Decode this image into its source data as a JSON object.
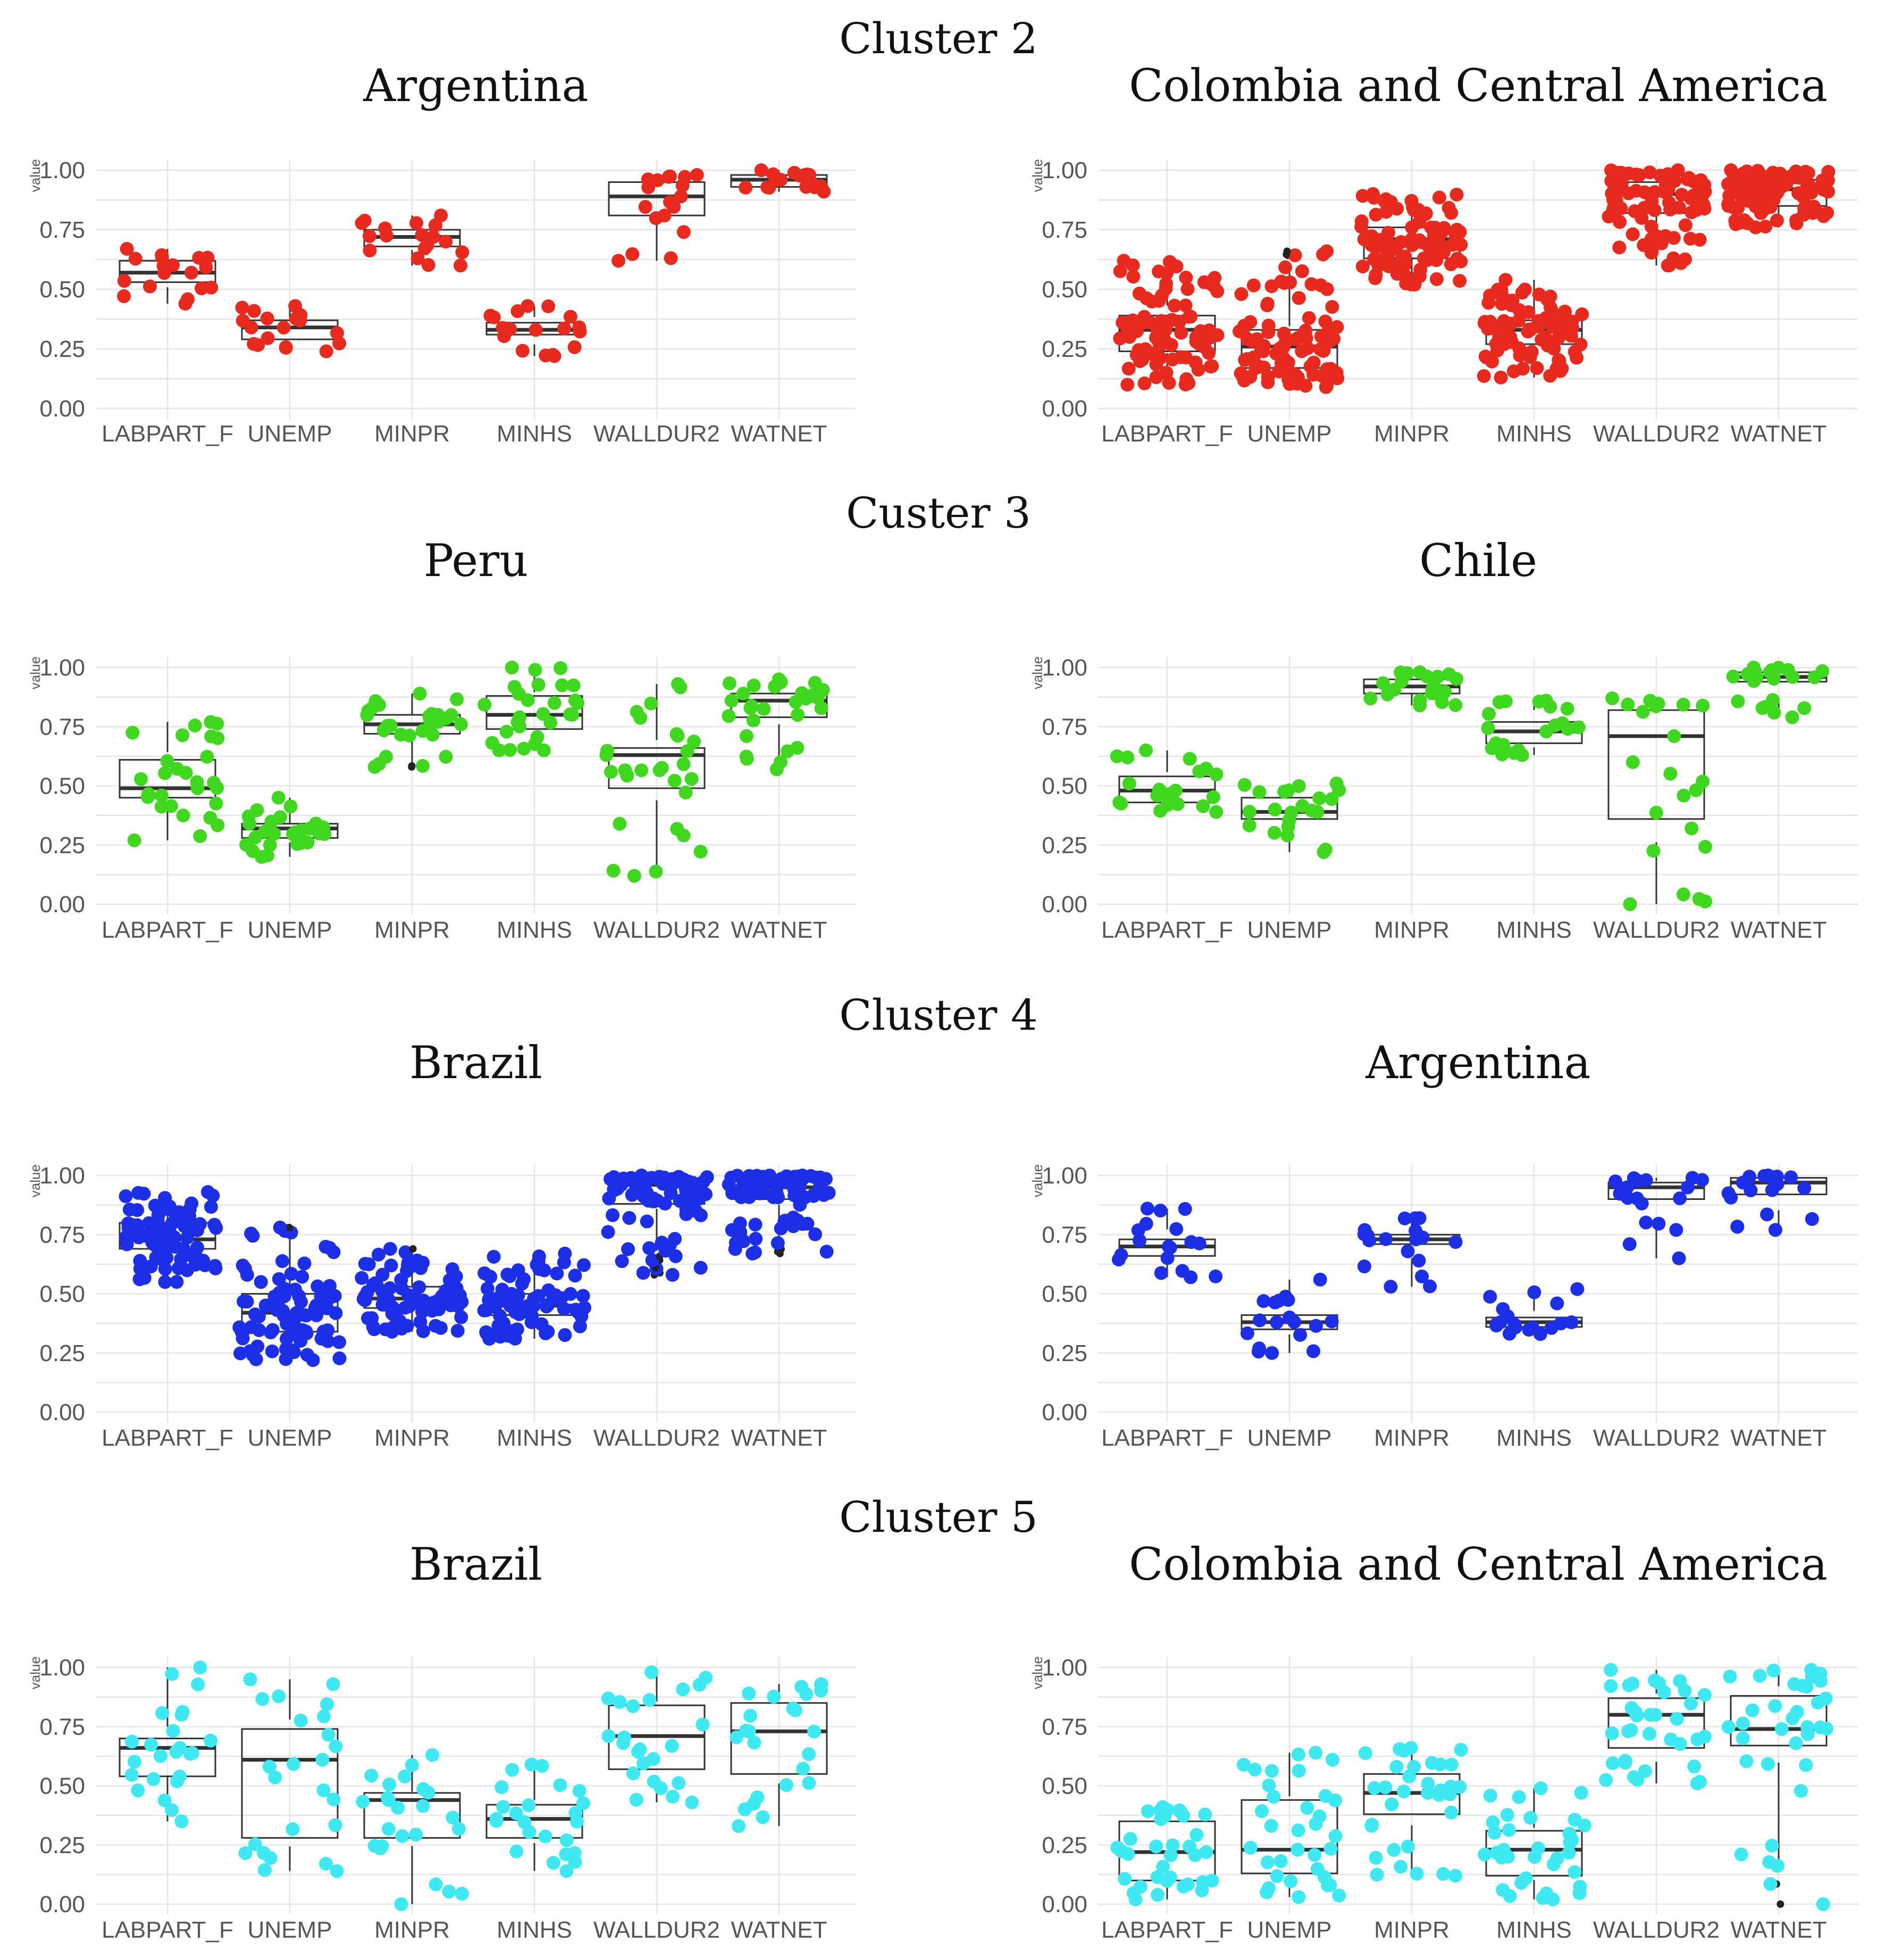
{
  "clusters": [
    {
      "title": "Cluster 2"
    },
    {
      "title": "Custer 3"
    },
    {
      "title": "Cluster 4"
    },
    {
      "title": "Cluster 5"
    }
  ],
  "chart_data": [
    {
      "type": "boxplot",
      "cluster": "Cluster 2",
      "title": "Argentina",
      "color": "#e82a1e",
      "ylabel": "value",
      "ylim": [
        0,
        1
      ],
      "yticks": [
        "0.00",
        "0.25",
        "0.50",
        "0.75",
        "1.00"
      ],
      "categories": [
        "LABPART_F",
        "UNEMP",
        "MINPR",
        "MINHS",
        "WALLDUR2",
        "WATNET"
      ],
      "series": [
        {
          "name": "LABPART_F",
          "min": 0.44,
          "q1": 0.53,
          "median": 0.57,
          "q3": 0.62,
          "max": 0.67,
          "n": 18
        },
        {
          "name": "UNEMP",
          "min": 0.24,
          "q1": 0.29,
          "median": 0.34,
          "q3": 0.37,
          "max": 0.43,
          "n": 18
        },
        {
          "name": "MINPR",
          "min": 0.6,
          "q1": 0.68,
          "median": 0.72,
          "q3": 0.75,
          "max": 0.81,
          "n": 18
        },
        {
          "name": "MINHS",
          "min": 0.22,
          "q1": 0.31,
          "median": 0.33,
          "q3": 0.36,
          "max": 0.43,
          "n": 18
        },
        {
          "name": "WALLDUR2",
          "min": 0.62,
          "q1": 0.81,
          "median": 0.89,
          "q3": 0.95,
          "max": 0.98,
          "n": 18
        },
        {
          "name": "WATNET",
          "min": 0.91,
          "q1": 0.93,
          "median": 0.96,
          "q3": 0.98,
          "max": 1.0,
          "n": 18
        }
      ]
    },
    {
      "type": "boxplot",
      "cluster": "Cluster 2",
      "title": "Colombia and Central America",
      "color": "#e82a1e",
      "ylabel": "value",
      "ylim": [
        0,
        1
      ],
      "yticks": [
        "0.00",
        "0.25",
        "0.50",
        "0.75",
        "1.00"
      ],
      "categories": [
        "LABPART_F",
        "UNEMP",
        "MINPR",
        "MINHS",
        "WALLDUR2",
        "WATNET"
      ],
      "series": [
        {
          "name": "LABPART_F",
          "min": 0.1,
          "q1": 0.24,
          "median": 0.33,
          "q3": 0.39,
          "max": 0.62,
          "n": 90
        },
        {
          "name": "UNEMP",
          "min": 0.09,
          "q1": 0.17,
          "median": 0.26,
          "q3": 0.33,
          "max": 0.66,
          "n": 90
        },
        {
          "name": "MINPR",
          "min": 0.52,
          "q1": 0.63,
          "median": 0.71,
          "q3": 0.76,
          "max": 0.9,
          "n": 90
        },
        {
          "name": "MINHS",
          "min": 0.13,
          "q1": 0.27,
          "median": 0.33,
          "q3": 0.37,
          "max": 0.54,
          "n": 90
        },
        {
          "name": "WALLDUR2",
          "min": 0.6,
          "q1": 0.82,
          "median": 0.9,
          "q3": 0.95,
          "max": 1.0,
          "n": 90
        },
        {
          "name": "WATNET",
          "min": 0.76,
          "q1": 0.85,
          "median": 0.92,
          "q3": 0.96,
          "max": 1.0,
          "n": 90
        }
      ]
    },
    {
      "type": "boxplot",
      "cluster": "Custer 3",
      "title": "Peru",
      "color": "#3fd81e",
      "ylabel": "value",
      "ylim": [
        0,
        1
      ],
      "yticks": [
        "0.00",
        "0.25",
        "0.50",
        "0.75",
        "1.00"
      ],
      "categories": [
        "LABPART_F",
        "UNEMP",
        "MINPR",
        "MINHS",
        "WALLDUR2",
        "WATNET"
      ],
      "series": [
        {
          "name": "LABPART_F",
          "min": 0.27,
          "q1": 0.45,
          "median": 0.49,
          "q3": 0.61,
          "max": 0.77,
          "n": 28
        },
        {
          "name": "UNEMP",
          "min": 0.2,
          "q1": 0.28,
          "median": 0.32,
          "q3": 0.34,
          "max": 0.45,
          "n": 28
        },
        {
          "name": "MINPR",
          "min": 0.58,
          "q1": 0.72,
          "median": 0.76,
          "q3": 0.8,
          "max": 0.89,
          "n": 28
        },
        {
          "name": "MINHS",
          "min": 0.65,
          "q1": 0.74,
          "median": 0.8,
          "q3": 0.88,
          "max": 1.0,
          "n": 28
        },
        {
          "name": "WALLDUR2",
          "min": 0.12,
          "q1": 0.49,
          "median": 0.63,
          "q3": 0.66,
          "max": 0.93,
          "n": 28
        },
        {
          "name": "WATNET",
          "min": 0.57,
          "q1": 0.79,
          "median": 0.86,
          "q3": 0.89,
          "max": 0.95,
          "n": 28
        }
      ]
    },
    {
      "type": "boxplot",
      "cluster": "Custer 3",
      "title": "Chile",
      "color": "#3fd81e",
      "ylabel": "value",
      "ylim": [
        0,
        1
      ],
      "yticks": [
        "0.00",
        "0.25",
        "0.50",
        "0.75",
        "1.00"
      ],
      "categories": [
        "LABPART_F",
        "UNEMP",
        "MINPR",
        "MINHS",
        "WALLDUR2",
        "WATNET"
      ],
      "series": [
        {
          "name": "LABPART_F",
          "min": 0.39,
          "q1": 0.43,
          "median": 0.48,
          "q3": 0.54,
          "max": 0.65,
          "n": 22
        },
        {
          "name": "UNEMP",
          "min": 0.22,
          "q1": 0.36,
          "median": 0.39,
          "q3": 0.45,
          "max": 0.51,
          "n": 22
        },
        {
          "name": "MINPR",
          "min": 0.84,
          "q1": 0.89,
          "median": 0.92,
          "q3": 0.95,
          "max": 0.98,
          "n": 22
        },
        {
          "name": "MINHS",
          "min": 0.63,
          "q1": 0.68,
          "median": 0.73,
          "q3": 0.77,
          "max": 0.86,
          "n": 22
        },
        {
          "name": "WALLDUR2",
          "min": 0.0,
          "q1": 0.36,
          "median": 0.71,
          "q3": 0.82,
          "max": 0.87,
          "n": 22
        },
        {
          "name": "WATNET",
          "min": 0.79,
          "q1": 0.94,
          "median": 0.96,
          "q3": 0.98,
          "max": 1.0,
          "n": 22
        }
      ]
    },
    {
      "type": "boxplot",
      "cluster": "Cluster 4",
      "title": "Brazil",
      "color": "#1c2ee6",
      "ylabel": "value",
      "ylim": [
        0,
        1
      ],
      "yticks": [
        "0.00",
        "0.25",
        "0.50",
        "0.75",
        "1.00"
      ],
      "categories": [
        "LABPART_F",
        "UNEMP",
        "MINPR",
        "MINHS",
        "WALLDUR2",
        "WATNET"
      ],
      "series": [
        {
          "name": "LABPART_F",
          "min": 0.55,
          "q1": 0.69,
          "median": 0.73,
          "q3": 0.8,
          "max": 0.93,
          "n": 85
        },
        {
          "name": "UNEMP",
          "min": 0.22,
          "q1": 0.34,
          "median": 0.42,
          "q3": 0.5,
          "max": 0.78,
          "n": 85
        },
        {
          "name": "MINPR",
          "min": 0.34,
          "q1": 0.44,
          "median": 0.48,
          "q3": 0.53,
          "max": 0.69,
          "n": 85
        },
        {
          "name": "MINHS",
          "min": 0.31,
          "q1": 0.41,
          "median": 0.45,
          "q3": 0.5,
          "max": 0.67,
          "n": 85
        },
        {
          "name": "WALLDUR2",
          "min": 0.58,
          "q1": 0.88,
          "median": 0.96,
          "q3": 0.98,
          "max": 1.0,
          "n": 85
        },
        {
          "name": "WATNET",
          "min": 0.67,
          "q1": 0.9,
          "median": 0.95,
          "q3": 0.98,
          "max": 1.0,
          "n": 85
        }
      ]
    },
    {
      "type": "boxplot",
      "cluster": "Cluster 4",
      "title": "Argentina",
      "color": "#1c2ee6",
      "ylabel": "value",
      "ylim": [
        0,
        1
      ],
      "yticks": [
        "0.00",
        "0.25",
        "0.50",
        "0.75",
        "1.00"
      ],
      "categories": [
        "LABPART_F",
        "UNEMP",
        "MINPR",
        "MINHS",
        "WALLDUR2",
        "WATNET"
      ],
      "series": [
        {
          "name": "LABPART_F",
          "min": 0.57,
          "q1": 0.66,
          "median": 0.7,
          "q3": 0.73,
          "max": 0.86,
          "n": 18
        },
        {
          "name": "UNEMP",
          "min": 0.25,
          "q1": 0.35,
          "median": 0.38,
          "q3": 0.41,
          "max": 0.56,
          "n": 18
        },
        {
          "name": "MINPR",
          "min": 0.53,
          "q1": 0.71,
          "median": 0.73,
          "q3": 0.75,
          "max": 0.82,
          "n": 18
        },
        {
          "name": "MINHS",
          "min": 0.33,
          "q1": 0.36,
          "median": 0.38,
          "q3": 0.4,
          "max": 0.52,
          "n": 18
        },
        {
          "name": "WALLDUR2",
          "min": 0.65,
          "q1": 0.9,
          "median": 0.95,
          "q3": 0.97,
          "max": 0.99,
          "n": 18
        },
        {
          "name": "WATNET",
          "min": 0.77,
          "q1": 0.92,
          "median": 0.97,
          "q3": 0.99,
          "max": 1.0,
          "n": 18
        }
      ]
    },
    {
      "type": "boxplot",
      "cluster": "Cluster 5",
      "title": "Brazil",
      "color": "#3fe9f2",
      "ylabel": "value",
      "ylim": [
        0,
        1
      ],
      "yticks": [
        "0.00",
        "0.25",
        "0.50",
        "0.75",
        "1.00"
      ],
      "categories": [
        "LABPART_F",
        "UNEMP",
        "MINPR",
        "MINHS",
        "WALLDUR2",
        "WATNET"
      ],
      "series": [
        {
          "name": "LABPART_F",
          "min": 0.35,
          "q1": 0.54,
          "median": 0.66,
          "q3": 0.7,
          "max": 1.0,
          "n": 24
        },
        {
          "name": "UNEMP",
          "min": 0.14,
          "q1": 0.28,
          "median": 0.61,
          "q3": 0.74,
          "max": 0.95,
          "n": 24
        },
        {
          "name": "MINPR",
          "min": 0.0,
          "q1": 0.28,
          "median": 0.44,
          "q3": 0.47,
          "max": 0.63,
          "n": 24
        },
        {
          "name": "MINHS",
          "min": 0.14,
          "q1": 0.28,
          "median": 0.36,
          "q3": 0.42,
          "max": 0.59,
          "n": 24
        },
        {
          "name": "WALLDUR2",
          "min": 0.43,
          "q1": 0.57,
          "median": 0.71,
          "q3": 0.84,
          "max": 0.98,
          "n": 24
        },
        {
          "name": "WATNET",
          "min": 0.33,
          "q1": 0.55,
          "median": 0.73,
          "q3": 0.85,
          "max": 0.93,
          "n": 24
        }
      ]
    },
    {
      "type": "boxplot",
      "cluster": "Cluster 5",
      "title": "Colombia and Central America",
      "color": "#3fe9f2",
      "ylabel": "value",
      "ylim": [
        0,
        1
      ],
      "yticks": [
        "0.00",
        "0.25",
        "0.50",
        "0.75",
        "1.00"
      ],
      "categories": [
        "LABPART_F",
        "UNEMP",
        "MINPR",
        "MINHS",
        "WALLDUR2",
        "WATNET"
      ],
      "series": [
        {
          "name": "LABPART_F",
          "min": 0.02,
          "q1": 0.1,
          "median": 0.22,
          "q3": 0.35,
          "max": 0.41,
          "n": 35
        },
        {
          "name": "UNEMP",
          "min": 0.03,
          "q1": 0.13,
          "median": 0.23,
          "q3": 0.44,
          "max": 0.64,
          "n": 35
        },
        {
          "name": "MINPR",
          "min": 0.12,
          "q1": 0.38,
          "median": 0.47,
          "q3": 0.55,
          "max": 0.66,
          "n": 35
        },
        {
          "name": "MINHS",
          "min": 0.02,
          "q1": 0.12,
          "median": 0.23,
          "q3": 0.31,
          "max": 0.49,
          "n": 35
        },
        {
          "name": "WALLDUR2",
          "min": 0.51,
          "q1": 0.66,
          "median": 0.8,
          "q3": 0.87,
          "max": 0.99,
          "n": 35
        },
        {
          "name": "WATNET",
          "min": 0.0,
          "q1": 0.67,
          "median": 0.74,
          "q3": 0.88,
          "max": 0.99,
          "n": 35
        }
      ]
    }
  ]
}
